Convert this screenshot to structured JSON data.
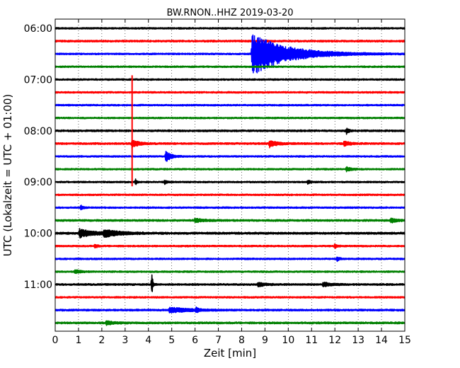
{
  "chart_data": {
    "type": "line",
    "title": "BW.RNON..HHZ 2019-03-20",
    "xlabel": "Zeit  [min]",
    "ylabel": "UTC (Lokalzeit = UTC + 01:00)",
    "xlim": [
      0,
      15
    ],
    "x_ticks": [
      "0",
      "1",
      "2",
      "3",
      "4",
      "5",
      "6",
      "7",
      "8",
      "9",
      "10",
      "11",
      "12",
      "13",
      "14",
      "15"
    ],
    "y_tick_labels": [
      "06:00",
      "07:00",
      "08:00",
      "09:00",
      "10:00",
      "11:00"
    ],
    "start_time": "06:00",
    "trace_minutes": 15,
    "grid": "vertical dotted",
    "trace_colors": [
      "#000000",
      "#ff0000",
      "#0000ff",
      "#008000"
    ],
    "traces": [
      {
        "start": "06:00",
        "color": "#000000",
        "noise": 0.6,
        "events": []
      },
      {
        "start": "06:15",
        "color": "#ff0000",
        "noise": 0.7,
        "events": []
      },
      {
        "start": "06:30",
        "color": "#0000ff",
        "noise": 0.6,
        "events": [
          {
            "t": 8.45,
            "amp": 30,
            "decay": 1.4
          }
        ]
      },
      {
        "start": "06:45",
        "color": "#008000",
        "noise": 0.6,
        "events": []
      },
      {
        "start": "07:00",
        "color": "#000000",
        "noise": 0.6,
        "events": []
      },
      {
        "start": "07:15",
        "color": "#ff0000",
        "noise": 0.6,
        "events": []
      },
      {
        "start": "07:30",
        "color": "#0000ff",
        "noise": 0.6,
        "events": []
      },
      {
        "start": "07:45",
        "color": "#008000",
        "noise": 0.6,
        "events": []
      },
      {
        "start": "08:00",
        "color": "#000000",
        "noise": 0.7,
        "events": [
          {
            "t": 12.5,
            "amp": 4,
            "decay": 0.1
          }
        ]
      },
      {
        "start": "08:15",
        "color": "#ff0000",
        "noise": 0.7,
        "events": [
          {
            "t": 3.3,
            "amp": 6,
            "decay": 0.25
          },
          {
            "t": 9.2,
            "amp": 5,
            "decay": 0.3
          },
          {
            "t": 12.4,
            "amp": 4,
            "decay": 0.2
          }
        ]
      },
      {
        "start": "08:30",
        "color": "#0000ff",
        "noise": 0.6,
        "events": [
          {
            "t": 4.75,
            "amp": 8,
            "decay": 0.2
          }
        ]
      },
      {
        "start": "08:45",
        "color": "#008000",
        "noise": 0.6,
        "events": [
          {
            "t": 12.5,
            "amp": 3,
            "decay": 0.2
          }
        ]
      },
      {
        "start": "09:00",
        "color": "#000000",
        "noise": 0.6,
        "events": [
          {
            "t": 3.45,
            "amp": 4,
            "decay": 0.05
          },
          {
            "t": 4.7,
            "amp": 3,
            "decay": 0.1
          },
          {
            "t": 10.85,
            "amp": 3,
            "decay": 0.1
          }
        ]
      },
      {
        "start": "09:15",
        "color": "#ff0000",
        "noise": 0.6,
        "events": []
      },
      {
        "start": "09:30",
        "color": "#0000ff",
        "noise": 0.6,
        "events": [
          {
            "t": 1.1,
            "amp": 3,
            "decay": 0.1
          }
        ]
      },
      {
        "start": "09:45",
        "color": "#008000",
        "noise": 0.7,
        "events": [
          {
            "t": 6.0,
            "amp": 2.5,
            "decay": 0.4
          },
          {
            "t": 14.4,
            "amp": 3,
            "decay": 0.3
          }
        ]
      },
      {
        "start": "10:00",
        "color": "#000000",
        "noise": 0.8,
        "events": [
          {
            "t": 1.05,
            "amp": 6,
            "decay": 0.6
          },
          {
            "t": 2.1,
            "amp": 5,
            "decay": 0.6
          }
        ]
      },
      {
        "start": "10:15",
        "color": "#ff0000",
        "noise": 0.6,
        "events": [
          {
            "t": 1.7,
            "amp": 3,
            "decay": 0.1
          },
          {
            "t": 12.0,
            "amp": 3,
            "decay": 0.1
          }
        ]
      },
      {
        "start": "10:30",
        "color": "#0000ff",
        "noise": 0.6,
        "events": [
          {
            "t": 12.1,
            "amp": 3,
            "decay": 0.1
          }
        ]
      },
      {
        "start": "10:45",
        "color": "#008000",
        "noise": 0.6,
        "events": [
          {
            "t": 0.85,
            "amp": 3,
            "decay": 0.2
          }
        ]
      },
      {
        "start": "11:00",
        "color": "#000000",
        "noise": 0.7,
        "events": [
          {
            "t": 4.15,
            "amp": 16,
            "decay": 0.04
          },
          {
            "t": 8.7,
            "amp": 3,
            "decay": 0.3
          },
          {
            "t": 11.5,
            "amp": 3,
            "decay": 0.3
          }
        ]
      },
      {
        "start": "11:15",
        "color": "#ff0000",
        "noise": 0.6,
        "events": []
      },
      {
        "start": "11:30",
        "color": "#0000ff",
        "noise": 0.7,
        "events": [
          {
            "t": 4.9,
            "amp": 4,
            "decay": 0.8
          },
          {
            "t": 6.05,
            "amp": 3,
            "decay": 0.1
          }
        ]
      },
      {
        "start": "11:45",
        "color": "#008000",
        "noise": 0.7,
        "events": [
          {
            "t": 2.2,
            "amp": 3,
            "decay": 0.3
          }
        ]
      }
    ],
    "vertical_spikes": [
      {
        "t": 3.3,
        "from": "06:55",
        "to": "09:05",
        "color": "#ff0000"
      },
      {
        "t": 4.15,
        "from": "10:53",
        "to": "11:08",
        "color": "#000000"
      }
    ]
  }
}
